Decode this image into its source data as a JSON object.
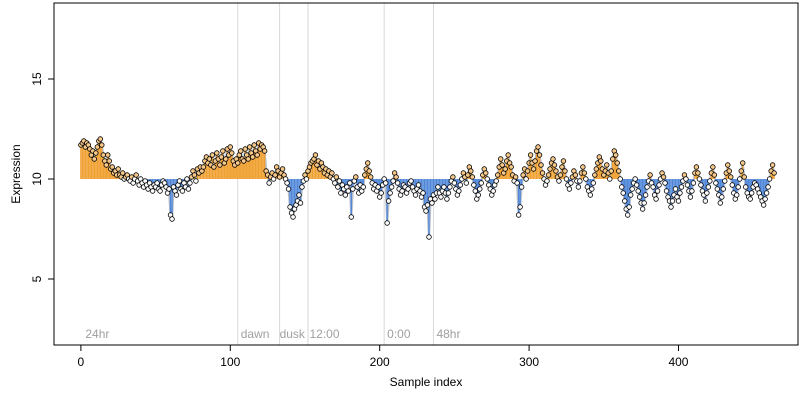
{
  "chart_data": {
    "type": "scatter",
    "title": "",
    "xlabel": "Sample index",
    "ylabel": "Expression",
    "xlim": [
      -18,
      480
    ],
    "ylim": [
      1.7,
      18.8
    ],
    "baseline": 10.0,
    "grid": false,
    "x_ticks": [
      0,
      100,
      200,
      300,
      400
    ],
    "y_ticks": [
      5,
      10,
      15
    ],
    "phase_lines": [
      105,
      133,
      152,
      203,
      236
    ],
    "phase_labels": [
      {
        "x": 3,
        "text": "24hr"
      },
      {
        "x": 107,
        "text": "dawn"
      },
      {
        "x": 133,
        "text": "dusk"
      },
      {
        "x": 153,
        "text": "12:00"
      },
      {
        "x": 205,
        "text": "0:00"
      },
      {
        "x": 238,
        "text": "48hr"
      }
    ],
    "colors": {
      "above": "#f0a030",
      "below": "#4f86d8",
      "trend": "#b8c0cc",
      "phase_line": "#d8d8d8",
      "point_fill_above": "#f7c98a",
      "point_fill_below": "#ffffff"
    },
    "values": [
      11.7,
      11.8,
      11.9,
      11.6,
      11.8,
      11.7,
      11.5,
      11.2,
      11.4,
      11.0,
      11.3,
      11.6,
      11.9,
      12.0,
      11.7,
      11.2,
      10.9,
      10.7,
      11.2,
      10.9,
      10.5,
      10.6,
      10.3,
      10.4,
      10.2,
      10.5,
      10.2,
      10.1,
      10.3,
      10.0,
      10.1,
      10.2,
      10.0,
      9.9,
      10.1,
      9.8,
      10.0,
      10.2,
      9.9,
      9.7,
      10.0,
      9.8,
      9.6,
      9.9,
      9.7,
      9.5,
      9.8,
      9.6,
      9.4,
      9.7,
      9.6,
      9.8,
      9.5,
      9.4,
      9.7,
      9.9,
      9.8,
      9.6,
      9.3,
      9.5,
      8.2,
      8.0,
      9.6,
      9.4,
      9.2,
      9.7,
      9.9,
      9.5,
      9.4,
      9.8,
      9.6,
      10.0,
      9.5,
      9.8,
      10.1,
      10.4,
      10.2,
      9.9,
      10.5,
      10.3,
      10.6,
      10.4,
      10.6,
      10.9,
      11.1,
      10.8,
      11.0,
      10.7,
      11.2,
      10.6,
      10.9,
      11.3,
      11.0,
      10.7,
      11.1,
      11.4,
      10.8,
      11.0,
      11.5,
      11.2,
      11.6,
      11.3,
      10.9,
      10.7,
      11.0,
      10.8,
      11.2,
      11.4,
      11.0,
      10.9,
      11.5,
      11.2,
      11.0,
      11.6,
      11.3,
      11.1,
      11.7,
      11.4,
      11.2,
      11.8,
      11.5,
      11.7,
      11.6,
      11.4,
      10.4,
      10.2,
      9.8,
      10.1,
      10.3,
      10.0,
      10.2,
      10.6,
      10.4,
      10.1,
      10.3,
      10.5,
      10.2,
      10.0,
      9.8,
      9.5,
      8.6,
      8.3,
      8.1,
      8.5,
      8.7,
      8.9,
      9.2,
      8.8,
      9.6,
      9.9,
      10.2,
      10.0,
      10.4,
      10.6,
      10.8,
      10.9,
      11.0,
      11.2,
      10.7,
      10.9,
      10.5,
      10.8,
      10.6,
      10.3,
      10.5,
      10.2,
      10.4,
      10.1,
      10.3,
      10.0,
      9.8,
      10.1,
      9.6,
      9.9,
      9.3,
      9.7,
      9.5,
      9.2,
      9.6,
      9.4,
      9.8,
      8.1,
      9.5,
      9.9,
      10.1,
      9.6,
      9.3,
      9.7,
      9.4,
      9.6,
      10.2,
      10.5,
      10.8,
      10.4,
      10.1,
      9.8,
      9.5,
      9.7,
      9.4,
      9.6,
      9.1,
      9.3,
      9.7,
      10.0,
      9.8,
      7.8,
      8.9,
      9.3,
      9.6,
      9.9,
      10.3,
      10.1,
      9.8,
      9.5,
      9.2,
      9.4,
      9.7,
      9.6,
      9.3,
      9.5,
      9.8,
      9.9,
      9.6,
      9.4,
      9.2,
      9.5,
      9.7,
      9.4,
      9.1,
      9.3,
      8.6,
      8.4,
      8.7,
      7.1,
      9.0,
      8.8,
      9.2,
      9.0,
      9.3,
      9.6,
      9.3,
      9.1,
      9.4,
      9.6,
      9.3,
      9.0,
      9.3,
      9.6,
      9.9,
      10.1,
      9.8,
      9.5,
      9.2,
      9.4,
      9.7,
      10.0,
      10.3,
      10.1,
      9.8,
      10.2,
      10.6,
      10.4,
      10.1,
      9.7,
      9.4,
      9.0,
      9.2,
      9.5,
      9.8,
      10.2,
      10.5,
      10.3,
      10.0,
      9.7,
      9.5,
      9.2,
      9.4,
      9.7,
      9.9,
      10.2,
      10.6,
      11.0,
      10.7,
      10.3,
      10.5,
      10.9,
      11.2,
      10.8,
      10.6,
      10.2,
      9.9,
      10.1,
      9.8,
      8.2,
      8.6,
      9.6,
      10.2,
      10.5,
      10.0,
      10.4,
      10.8,
      11.2,
      10.8,
      10.5,
      10.9,
      11.4,
      11.6,
      11.2,
      10.7,
      10.3,
      10.0,
      9.7,
      9.9,
      10.2,
      10.5,
      10.8,
      11.0,
      10.7,
      10.4,
      10.1,
      9.9,
      10.2,
      10.6,
      10.9,
      10.4,
      10.0,
      9.7,
      9.5,
      9.8,
      10.1,
      10.4,
      10.2,
      9.9,
      9.6,
      9.9,
      10.3,
      10.6,
      10.3,
      10.0,
      9.6,
      9.4,
      9.2,
      9.5,
      9.8,
      10.2,
      10.5,
      10.8,
      11.1,
      10.9,
      10.5,
      10.2,
      10.4,
      10.7,
      10.3,
      10.0,
      10.4,
      11.0,
      11.4,
      11.2,
      10.8,
      10.4,
      10.0,
      9.6,
      9.3,
      8.9,
      8.5,
      8.2,
      8.6,
      9.2,
      9.5,
      9.8,
      10.0,
      9.7,
      9.4,
      9.1,
      8.8,
      8.5,
      8.8,
      9.2,
      9.6,
      9.9,
      10.2,
      9.8,
      9.6,
      9.2,
      9.0,
      9.4,
      9.7,
      10.0,
      10.3,
      10.1,
      9.8,
      9.4,
      9.1,
      8.9,
      8.6,
      8.9,
      9.2,
      9.5,
      9.1,
      8.9,
      9.3,
      9.6,
      9.9,
      10.2,
      10.0,
      9.7,
      9.4,
      9.1,
      9.4,
      9.8,
      10.3,
      10.6,
      10.3,
      10.0,
      9.7,
      9.4,
      9.2,
      8.9,
      9.3,
      9.6,
      9.9,
      10.3,
      10.6,
      10.2,
      9.8,
      9.5,
      9.2,
      8.8,
      9.1,
      9.5,
      9.9,
      10.3,
      10.7,
      10.4,
      10.1,
      9.7,
      9.3,
      9.0,
      9.2,
      9.6,
      10.0,
      10.4,
      10.8,
      10.1,
      9.6,
      9.3,
      9.1,
      9.0,
      9.3,
      9.6,
      9.8,
      9.7,
      9.5,
      9.3,
      9.1,
      8.9,
      8.7,
      9.0,
      9.3,
      9.6,
      10.0,
      10.4,
      10.7,
      10.3
    ]
  }
}
